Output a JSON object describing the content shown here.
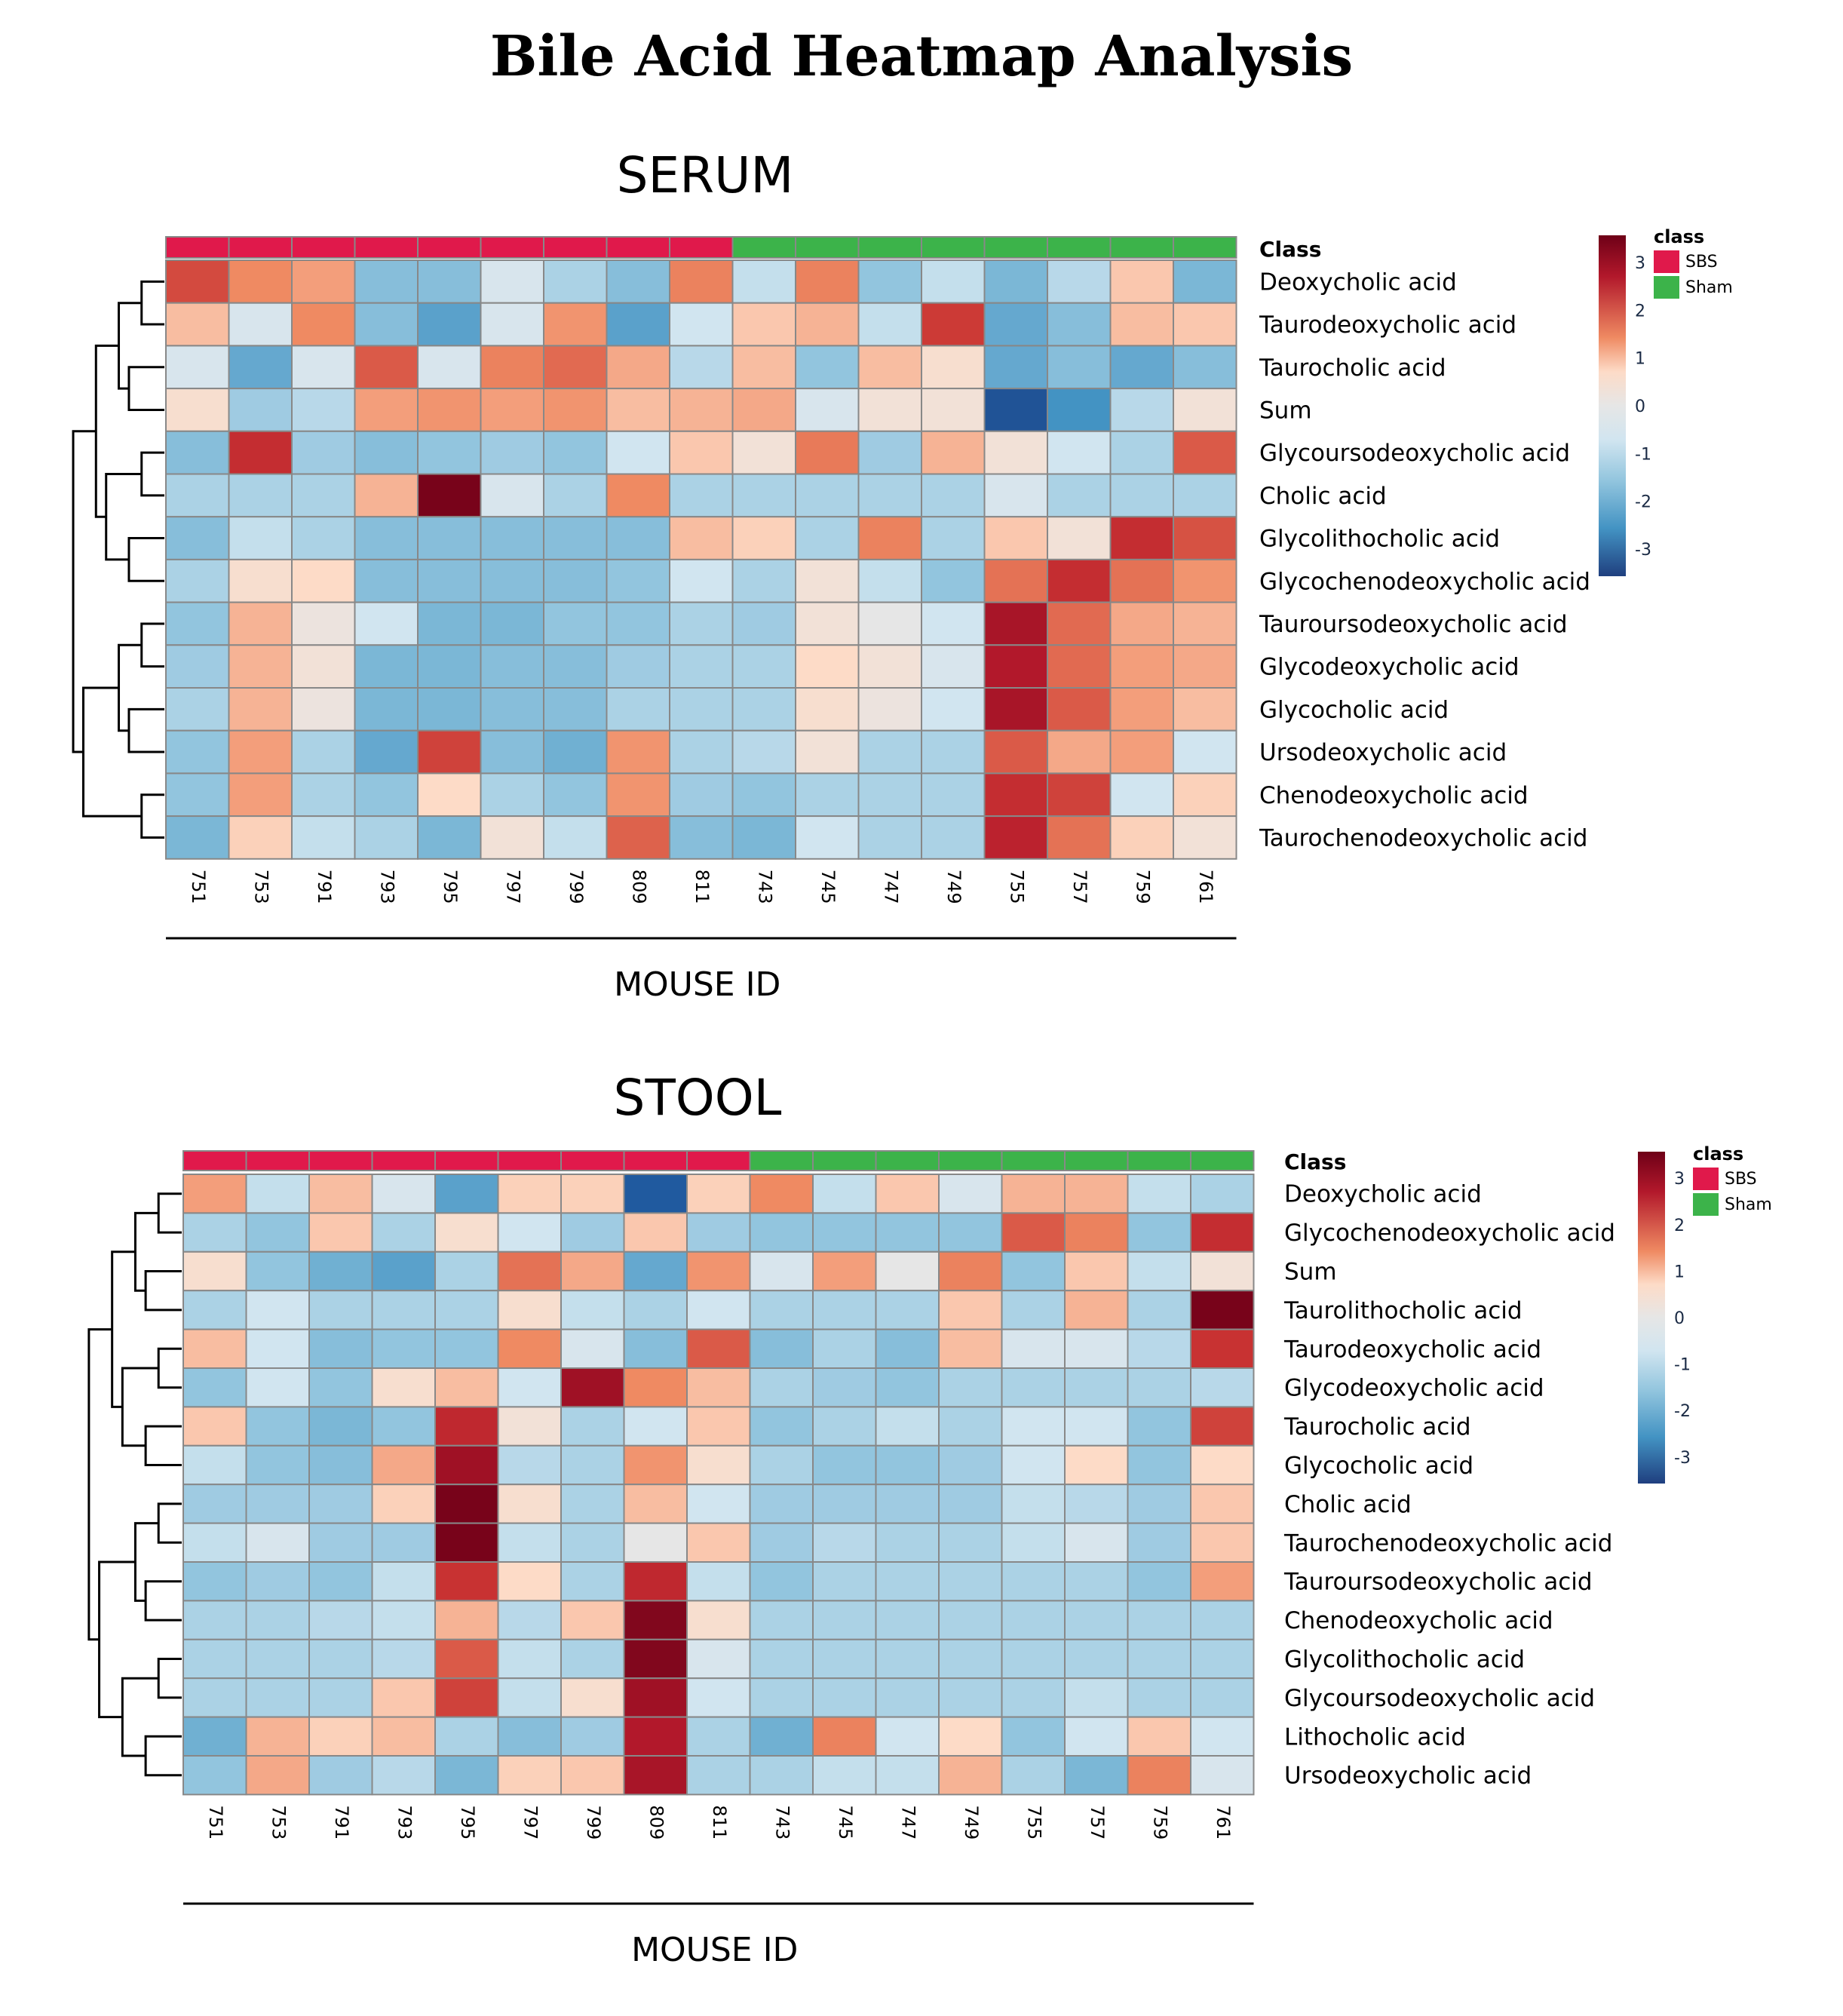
{
  "page_title": "Bile Acid Heatmap Analysis",
  "colors": {
    "sbs": "#e0194b",
    "sham": "#3cb34a",
    "scale_low": "#1f4e99",
    "scale_mid": "#e6e6e6",
    "scale_high": "#6e0017",
    "grid": "#888888"
  },
  "chart_data": [
    {
      "type": "heatmap",
      "title": "SERUM",
      "xlabel": "MOUSE ID",
      "annotation_label": "Class",
      "legend": {
        "title": "class",
        "entries": [
          "SBS",
          "Sham"
        ]
      },
      "scale_ticks": [
        "3",
        "2",
        "1",
        "0",
        "-1",
        "-2",
        "-3"
      ],
      "value_range": [
        -3.5,
        3.5
      ],
      "columns": [
        "751",
        "753",
        "791",
        "793",
        "795",
        "797",
        "799",
        "809",
        "811",
        "743",
        "745",
        "747",
        "749",
        "755",
        "757",
        "759",
        "761"
      ],
      "column_class": [
        "SBS",
        "SBS",
        "SBS",
        "SBS",
        "SBS",
        "SBS",
        "SBS",
        "SBS",
        "SBS",
        "Sham",
        "Sham",
        "Sham",
        "Sham",
        "Sham",
        "Sham",
        "Sham",
        "Sham"
      ],
      "rows": [
        "Deoxycholic acid",
        "Taurodeoxycholic acid",
        "Taurocholic acid",
        "Sum",
        "Glycoursodeoxycholic acid",
        "Cholic acid",
        "Glycolithocholic acid",
        "Glycochenodeoxycholic acid",
        "Tauroursodeoxycholic acid",
        "Glycodeoxycholic acid",
        "Glycocholic acid",
        "Ursodeoxycholic acid",
        "Chenodeoxycholic acid",
        "Taurochenodeoxycholic acid"
      ],
      "values": [
        [
          2.0,
          1.2,
          1.0,
          -0.9,
          -0.9,
          -0.2,
          -0.6,
          -0.9,
          1.3,
          -0.4,
          1.3,
          -0.8,
          -0.4,
          -1.0,
          -0.5,
          0.6,
          -1.0
        ],
        [
          0.7,
          -0.2,
          1.2,
          -0.9,
          -1.3,
          -0.2,
          1.1,
          -1.3,
          -0.3,
          0.6,
          0.8,
          -0.4,
          2.2,
          -1.2,
          -0.9,
          0.7,
          0.6
        ],
        [
          -0.2,
          -1.2,
          -0.2,
          1.8,
          -0.2,
          1.3,
          1.6,
          0.9,
          -0.5,
          0.7,
          -0.8,
          0.7,
          0.3,
          -1.2,
          -0.9,
          -1.2,
          -0.9
        ],
        [
          0.3,
          -0.7,
          -0.5,
          1.0,
          1.1,
          1.0,
          1.1,
          0.7,
          0.8,
          0.9,
          -0.2,
          0.2,
          0.2,
          -3.0,
          -1.5,
          -0.5,
          0.2
        ],
        [
          -0.9,
          2.4,
          -0.7,
          -0.9,
          -0.8,
          -0.7,
          -0.8,
          -0.3,
          0.6,
          0.2,
          1.4,
          -0.7,
          0.8,
          0.2,
          -0.3,
          -0.6,
          1.8
        ],
        [
          -0.6,
          -0.6,
          -0.6,
          0.8,
          3.4,
          -0.2,
          -0.6,
          1.2,
          -0.6,
          -0.6,
          -0.6,
          -0.6,
          -0.6,
          -0.2,
          -0.6,
          -0.6,
          -0.6
        ],
        [
          -0.9,
          -0.4,
          -0.6,
          -0.9,
          -0.9,
          -0.9,
          -0.9,
          -0.9,
          0.7,
          0.5,
          -0.6,
          1.3,
          -0.6,
          0.6,
          0.2,
          2.4,
          1.9
        ],
        [
          -0.6,
          0.3,
          0.4,
          -0.9,
          -0.9,
          -0.9,
          -0.9,
          -0.8,
          -0.3,
          -0.6,
          0.2,
          -0.4,
          -0.8,
          1.5,
          2.4,
          1.5,
          1.1
        ],
        [
          -0.8,
          0.8,
          0.1,
          -0.3,
          -1.0,
          -1.0,
          -0.8,
          -0.8,
          -0.6,
          -0.7,
          0.2,
          0.0,
          -0.3,
          2.9,
          1.6,
          0.9,
          0.8
        ],
        [
          -0.7,
          0.8,
          0.2,
          -1.0,
          -1.0,
          -0.9,
          -0.9,
          -0.7,
          -0.6,
          -0.6,
          0.4,
          0.2,
          -0.2,
          2.8,
          1.6,
          1.0,
          0.9
        ],
        [
          -0.6,
          0.8,
          0.1,
          -1.0,
          -1.0,
          -0.9,
          -0.9,
          -0.6,
          -0.6,
          -0.6,
          0.3,
          0.1,
          -0.3,
          2.9,
          1.8,
          1.0,
          0.7
        ],
        [
          -0.8,
          1.0,
          -0.6,
          -1.2,
          2.1,
          -0.9,
          -1.1,
          1.1,
          -0.6,
          -0.5,
          0.2,
          -0.6,
          -0.6,
          1.8,
          0.9,
          1.0,
          -0.3
        ],
        [
          -0.8,
          1.0,
          -0.6,
          -0.8,
          0.4,
          -0.6,
          -0.8,
          1.1,
          -0.7,
          -0.8,
          -0.6,
          -0.6,
          -0.6,
          2.4,
          2.1,
          -0.3,
          0.5
        ],
        [
          -1.0,
          0.5,
          -0.4,
          -0.6,
          -1.0,
          0.2,
          -0.4,
          1.7,
          -0.9,
          -1.0,
          -0.3,
          -0.6,
          -0.6,
          2.6,
          1.5,
          0.5,
          0.2
        ]
      ]
    },
    {
      "type": "heatmap",
      "title": "STOOL",
      "xlabel": "MOUSE ID",
      "annotation_label": "Class",
      "legend": {
        "title": "class",
        "entries": [
          "SBS",
          "Sham"
        ]
      },
      "scale_ticks": [
        "3",
        "2",
        "1",
        "0",
        "-1",
        "-2",
        "-3"
      ],
      "value_range": [
        -3.5,
        3.5
      ],
      "columns": [
        "751",
        "753",
        "791",
        "793",
        "795",
        "797",
        "799",
        "809",
        "811",
        "743",
        "745",
        "747",
        "749",
        "755",
        "757",
        "759",
        "761"
      ],
      "column_class": [
        "SBS",
        "SBS",
        "SBS",
        "SBS",
        "SBS",
        "SBS",
        "SBS",
        "SBS",
        "SBS",
        "Sham",
        "Sham",
        "Sham",
        "Sham",
        "Sham",
        "Sham",
        "Sham",
        "Sham"
      ],
      "rows": [
        "Deoxycholic acid",
        "Glycochenodeoxycholic acid",
        "Sum",
        "Taurolithocholic acid",
        "Taurodeoxycholic acid",
        "Glycodeoxycholic acid",
        "Taurocholic acid",
        "Glycocholic acid",
        "Cholic acid",
        "Taurochenodeoxycholic acid",
        "Tauroursodeoxycholic acid",
        "Chenodeoxycholic acid",
        "Glycolithocholic acid",
        "Glycoursodeoxycholic acid",
        "Lithocholic acid",
        "Ursodeoxycholic acid"
      ],
      "values": [
        [
          1.0,
          -0.4,
          0.7,
          -0.2,
          -1.3,
          0.5,
          0.5,
          -2.8,
          0.5,
          1.2,
          -0.4,
          0.6,
          -0.2,
          0.8,
          0.8,
          -0.4,
          -0.6
        ],
        [
          -0.6,
          -0.8,
          0.6,
          -0.6,
          0.3,
          -0.3,
          -0.7,
          0.6,
          -0.7,
          -0.8,
          -0.8,
          -0.8,
          -0.8,
          1.8,
          1.3,
          -0.8,
          2.4
        ],
        [
          0.3,
          -0.8,
          -1.1,
          -1.3,
          -0.6,
          1.5,
          0.9,
          -1.2,
          1.1,
          -0.2,
          1.0,
          0.0,
          1.3,
          -0.8,
          0.6,
          -0.4,
          0.2
        ],
        [
          -0.6,
          -0.3,
          -0.6,
          -0.6,
          -0.6,
          0.3,
          -0.4,
          -0.6,
          -0.3,
          -0.6,
          -0.6,
          -0.6,
          0.6,
          -0.6,
          0.8,
          -0.6,
          3.4
        ],
        [
          0.7,
          -0.3,
          -0.9,
          -0.8,
          -0.8,
          1.2,
          -0.2,
          -0.9,
          1.8,
          -0.9,
          -0.6,
          -0.9,
          0.7,
          -0.2,
          -0.2,
          -0.5,
          2.3
        ],
        [
          -0.8,
          -0.3,
          -0.8,
          0.3,
          0.7,
          -0.3,
          3.0,
          1.2,
          0.7,
          -0.6,
          -0.7,
          -0.8,
          -0.6,
          -0.6,
          -0.6,
          -0.6,
          -0.5
        ],
        [
          0.6,
          -0.8,
          -1.0,
          -0.8,
          2.5,
          0.2,
          -0.6,
          -0.3,
          0.6,
          -0.8,
          -0.6,
          -0.4,
          -0.6,
          -0.3,
          -0.3,
          -0.8,
          2.1
        ],
        [
          -0.4,
          -0.8,
          -0.9,
          0.9,
          3.0,
          -0.5,
          -0.6,
          1.1,
          0.3,
          -0.6,
          -0.8,
          -0.8,
          -0.7,
          -0.3,
          0.4,
          -0.8,
          0.4
        ],
        [
          -0.7,
          -0.7,
          -0.7,
          0.5,
          3.4,
          0.3,
          -0.6,
          0.7,
          -0.3,
          -0.7,
          -0.7,
          -0.7,
          -0.7,
          -0.4,
          -0.5,
          -0.7,
          0.6
        ],
        [
          -0.4,
          -0.2,
          -0.7,
          -0.7,
          3.4,
          -0.4,
          -0.6,
          0.0,
          0.6,
          -0.7,
          -0.5,
          -0.6,
          -0.6,
          -0.4,
          -0.2,
          -0.7,
          0.6
        ],
        [
          -0.8,
          -0.7,
          -0.8,
          -0.4,
          2.3,
          0.4,
          -0.6,
          2.5,
          -0.4,
          -0.8,
          -0.6,
          -0.6,
          -0.6,
          -0.6,
          -0.6,
          -0.8,
          1.0
        ],
        [
          -0.6,
          -0.6,
          -0.5,
          -0.4,
          0.8,
          -0.5,
          0.6,
          3.3,
          0.3,
          -0.6,
          -0.6,
          -0.6,
          -0.6,
          -0.6,
          -0.6,
          -0.6,
          -0.6
        ],
        [
          -0.6,
          -0.6,
          -0.6,
          -0.5,
          1.8,
          -0.4,
          -0.6,
          3.3,
          -0.2,
          -0.6,
          -0.6,
          -0.6,
          -0.6,
          -0.6,
          -0.6,
          -0.6,
          -0.6
        ],
        [
          -0.6,
          -0.6,
          -0.6,
          0.6,
          2.1,
          -0.4,
          0.3,
          3.0,
          -0.3,
          -0.6,
          -0.6,
          -0.6,
          -0.6,
          -0.6,
          -0.4,
          -0.6,
          -0.6
        ],
        [
          -1.1,
          0.8,
          0.5,
          0.7,
          -0.6,
          -0.9,
          -0.7,
          2.8,
          -0.6,
          -1.1,
          1.3,
          -0.3,
          0.4,
          -0.8,
          -0.3,
          0.6,
          -0.3
        ],
        [
          -0.8,
          0.9,
          -0.7,
          -0.5,
          -1.0,
          0.5,
          0.6,
          2.9,
          -0.6,
          -0.6,
          -0.4,
          -0.4,
          0.8,
          -0.6,
          -1.0,
          1.3,
          -0.2
        ]
      ]
    }
  ]
}
